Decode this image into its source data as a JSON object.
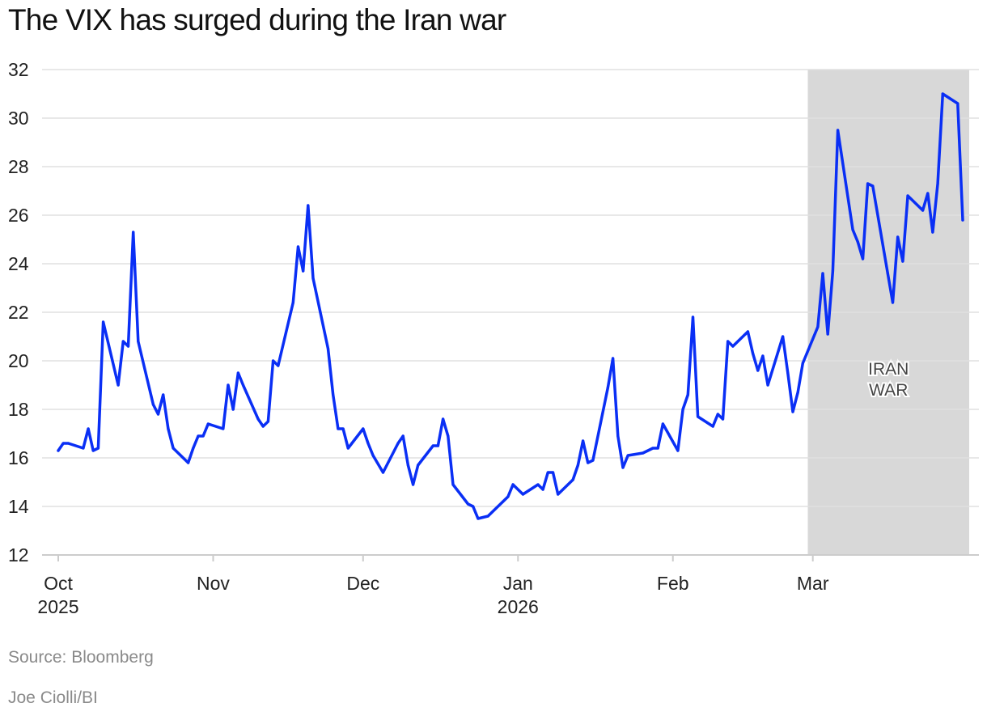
{
  "title": "The VIX has surged during the Iran war",
  "source": "Source: Bloomberg",
  "credit": "Joe Ciolli/BI",
  "chart_data": {
    "type": "line",
    "title": "The VIX has surged during the Iran war",
    "xlabel": "",
    "ylabel": "",
    "ylim": [
      12,
      32
    ],
    "yticks": [
      12,
      14,
      16,
      18,
      20,
      22,
      24,
      26,
      28,
      30,
      32
    ],
    "x_range_days": [
      0,
      181
    ],
    "x_unit": "days since Oct 1, 2025",
    "xticks": [
      {
        "day": 0,
        "label": "Oct",
        "sublabel": "2025"
      },
      {
        "day": 31,
        "label": "Nov",
        "sublabel": ""
      },
      {
        "day": 61,
        "label": "Dec",
        "sublabel": ""
      },
      {
        "day": 92,
        "label": "Jan",
        "sublabel": "2026"
      },
      {
        "day": 123,
        "label": "Feb",
        "sublabel": ""
      },
      {
        "day": 151,
        "label": "Mar",
        "sublabel": ""
      }
    ],
    "shaded_region": {
      "start_day": 150,
      "end_day": 183,
      "label_line1": "IRAN",
      "label_line2": "WAR",
      "label_value": 19.3
    },
    "colors": {
      "line": "#0a2ff5",
      "shade": "#d8d8d8",
      "grid": "#e0e0e0",
      "axis": "#cccccc",
      "text": "#222222",
      "footer": "#8a8a8a"
    },
    "series": [
      {
        "name": "VIX",
        "points": [
          [
            0,
            16.3
          ],
          [
            1,
            16.6
          ],
          [
            2,
            16.6
          ],
          [
            5,
            16.4
          ],
          [
            6,
            17.2
          ],
          [
            7,
            16.3
          ],
          [
            8,
            16.4
          ],
          [
            9,
            21.6
          ],
          [
            12,
            19.0
          ],
          [
            13,
            20.8
          ],
          [
            14,
            20.6
          ],
          [
            15,
            25.3
          ],
          [
            16,
            20.8
          ],
          [
            19,
            18.2
          ],
          [
            20,
            17.8
          ],
          [
            21,
            18.6
          ],
          [
            22,
            17.2
          ],
          [
            23,
            16.4
          ],
          [
            26,
            15.8
          ],
          [
            27,
            16.4
          ],
          [
            28,
            16.9
          ],
          [
            29,
            16.9
          ],
          [
            30,
            17.4
          ],
          [
            33,
            17.2
          ],
          [
            34,
            19.0
          ],
          [
            35,
            18.0
          ],
          [
            36,
            19.5
          ],
          [
            37,
            19.0
          ],
          [
            40,
            17.6
          ],
          [
            41,
            17.3
          ],
          [
            42,
            17.5
          ],
          [
            43,
            20.0
          ],
          [
            44,
            19.8
          ],
          [
            47,
            22.4
          ],
          [
            48,
            24.7
          ],
          [
            49,
            23.7
          ],
          [
            50,
            26.4
          ],
          [
            51,
            23.4
          ],
          [
            54,
            20.5
          ],
          [
            55,
            18.6
          ],
          [
            56,
            17.2
          ],
          [
            57,
            17.2
          ],
          [
            58,
            16.4
          ],
          [
            61,
            17.2
          ],
          [
            62,
            16.6
          ],
          [
            63,
            16.1
          ],
          [
            65,
            15.4
          ],
          [
            68,
            16.6
          ],
          [
            69,
            16.9
          ],
          [
            70,
            15.7
          ],
          [
            71,
            14.9
          ],
          [
            72,
            15.7
          ],
          [
            75,
            16.5
          ],
          [
            76,
            16.5
          ],
          [
            77,
            17.6
          ],
          [
            78,
            16.9
          ],
          [
            79,
            14.9
          ],
          [
            82,
            14.1
          ],
          [
            83,
            14.0
          ],
          [
            84,
            13.5
          ],
          [
            86,
            13.6
          ],
          [
            89,
            14.2
          ],
          [
            90,
            14.4
          ],
          [
            91,
            14.9
          ],
          [
            93,
            14.5
          ],
          [
            96,
            14.9
          ],
          [
            97,
            14.7
          ],
          [
            98,
            15.4
          ],
          [
            99,
            15.4
          ],
          [
            100,
            14.5
          ],
          [
            103,
            15.1
          ],
          [
            104,
            15.7
          ],
          [
            105,
            16.7
          ],
          [
            106,
            15.8
          ],
          [
            107,
            15.9
          ],
          [
            110,
            18.9
          ],
          [
            111,
            20.1
          ],
          [
            112,
            16.9
          ],
          [
            113,
            15.6
          ],
          [
            114,
            16.1
          ],
          [
            117,
            16.2
          ],
          [
            118,
            16.3
          ],
          [
            119,
            16.4
          ],
          [
            120,
            16.4
          ],
          [
            121,
            17.4
          ],
          [
            124,
            16.3
          ],
          [
            125,
            18.0
          ],
          [
            126,
            18.6
          ],
          [
            127,
            21.8
          ],
          [
            128,
            17.7
          ],
          [
            131,
            17.3
          ],
          [
            132,
            17.8
          ],
          [
            133,
            17.6
          ],
          [
            134,
            20.8
          ],
          [
            135,
            20.6
          ],
          [
            138,
            21.2
          ],
          [
            139,
            20.3
          ],
          [
            140,
            19.6
          ],
          [
            141,
            20.2
          ],
          [
            142,
            19.0
          ],
          [
            145,
            21.0
          ],
          [
            146,
            19.5
          ],
          [
            147,
            17.9
          ],
          [
            148,
            18.7
          ],
          [
            149,
            19.9
          ],
          [
            152,
            21.4
          ],
          [
            153,
            23.6
          ],
          [
            154,
            21.1
          ],
          [
            155,
            23.7
          ],
          [
            156,
            29.5
          ],
          [
            159,
            25.4
          ],
          [
            160,
            24.9
          ],
          [
            161,
            24.2
          ],
          [
            162,
            27.3
          ],
          [
            163,
            27.2
          ],
          [
            166,
            23.6
          ],
          [
            167,
            22.4
          ],
          [
            168,
            25.1
          ],
          [
            169,
            24.1
          ],
          [
            170,
            26.8
          ],
          [
            173,
            26.2
          ],
          [
            174,
            26.9
          ],
          [
            175,
            25.3
          ],
          [
            176,
            27.3
          ],
          [
            177,
            31.0
          ],
          [
            180,
            30.6
          ],
          [
            181,
            25.8
          ]
        ]
      }
    ]
  }
}
